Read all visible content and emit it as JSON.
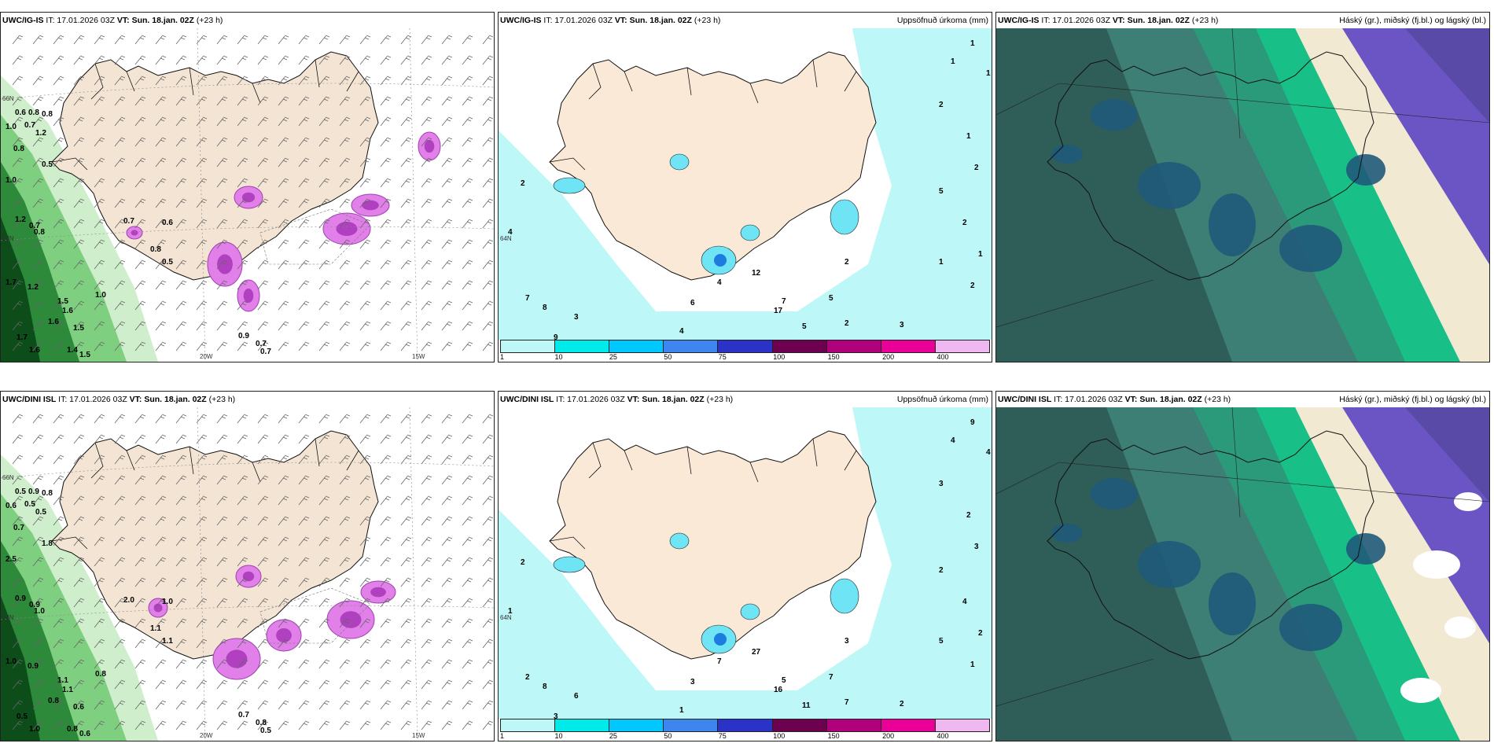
{
  "rows": [
    {
      "id": "row1",
      "panels": [
        {
          "type": "wind",
          "model": "UWC/IG-IS",
          "issued": "IT: 17.01.2026 03Z",
          "valid_label": "VT:",
          "valid": "Sun. 18.jan. 02Z",
          "lead": "(+23 h)",
          "title_right": "",
          "values": [
            "0.6",
            "0.8",
            "0.8",
            "1.0",
            "0.7",
            "1.2",
            "0.8",
            "0.5",
            "1.0",
            "1.2",
            "0.7",
            "0.8",
            "0.7",
            "0.6",
            "0.8",
            "0.5",
            "1.7",
            "1.2",
            "1.5",
            "1.6",
            "1.6",
            "1.5",
            "1.0",
            "1.7",
            "1.6",
            "1.4",
            "1.5",
            "0.9",
            "0.7",
            "0.7"
          ],
          "lon_labels": [
            "20W",
            "15W"
          ],
          "lat_labels": [
            "66N",
            "64N"
          ]
        },
        {
          "type": "precip",
          "model": "UWC/IG-IS",
          "issued": "IT: 17.01.2026 03Z",
          "valid_label": "VT:",
          "valid": "Sun. 18.jan. 02Z",
          "lead": "(+23 h)",
          "title_right": "Uppsöfnuð úrkoma (mm)",
          "values": [
            "2",
            "4",
            "7",
            "8",
            "3",
            "9",
            "6",
            "4",
            "4",
            "12",
            "17",
            "5",
            "7",
            "5",
            "2",
            "1",
            "1",
            "1",
            "2",
            "1",
            "2",
            "5",
            "2",
            "1",
            "1",
            "2",
            "3",
            "2"
          ]
        },
        {
          "type": "clouds",
          "model": "UWC/IG-IS",
          "issued": "IT: 17.01.2026 03Z",
          "valid_label": "VT:",
          "valid": "Sun. 18.jan. 02Z",
          "lead": "(+23 h)",
          "title_right": "Háský (gr.), miðský (fj.bl.) og lágský (bl.)"
        }
      ]
    },
    {
      "id": "row2",
      "panels": [
        {
          "type": "wind",
          "model": "UWC/DINI ISL",
          "issued": "IT: 17.01.2026 03Z",
          "valid_label": "VT:",
          "valid": "Sun. 18.jan. 02Z",
          "lead": "(+23 h)",
          "title_right": "",
          "values": [
            "0.5",
            "0.9",
            "0.8",
            "0.6",
            "0.5",
            "0.5",
            "0.7",
            "1.8",
            "2.5",
            "0.9",
            "0.9",
            "1.0",
            "2.0",
            "1.0",
            "1.1",
            "1.1",
            "1.0",
            "0.9",
            "1.1",
            "1.1",
            "0.8",
            "0.6",
            "0.8",
            "0.5",
            "1.0",
            "0.8",
            "0.6",
            "0.7",
            "0.8",
            "0.5"
          ],
          "lon_labels": [
            "20W",
            "15W"
          ],
          "lat_labels": [
            "66N",
            "64N"
          ]
        },
        {
          "type": "precip",
          "model": "UWC/DINI ISL",
          "issued": "IT: 17.01.2026 03Z",
          "valid_label": "VT:",
          "valid": "Sun. 18.jan. 02Z",
          "lead": "(+23 h)",
          "title_right": "Uppsöfnuð úrkoma (mm)",
          "values": [
            "2",
            "1",
            "2",
            "8",
            "6",
            "3",
            "3",
            "1",
            "7",
            "27",
            "16",
            "11",
            "5",
            "7",
            "7",
            "9",
            "4",
            "4",
            "3",
            "2",
            "3",
            "2",
            "4",
            "2",
            "5",
            "1",
            "2",
            "3"
          ]
        },
        {
          "type": "clouds",
          "model": "UWC/DINI ISL",
          "issued": "IT: 17.01.2026 03Z",
          "valid_label": "VT:",
          "valid": "Sun. 18.jan. 02Z",
          "lead": "(+23 h)",
          "title_right": "Háský (gr.), miðský (fj.bl.) og lágský (bl.)"
        }
      ]
    }
  ],
  "colorbar": {
    "labels": [
      "1",
      "10",
      "25",
      "50",
      "75",
      "100",
      "150",
      "200",
      "400"
    ],
    "colors": [
      "#bdf7f7",
      "#00eaea",
      "#00c8ff",
      "#3d86f0",
      "#2a32c8",
      "#6e0050",
      "#b0007c",
      "#ea0096",
      "#f0b8f0"
    ]
  }
}
